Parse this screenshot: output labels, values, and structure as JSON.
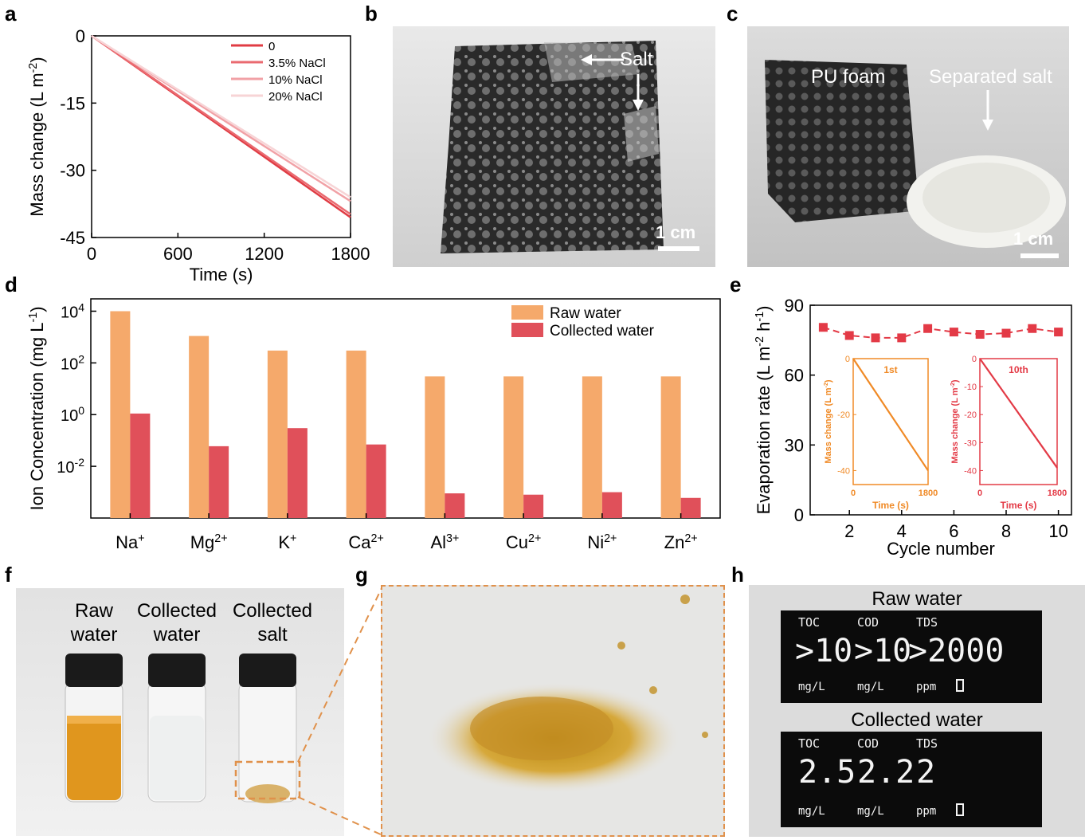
{
  "panel_labels": {
    "a": "a",
    "b": "b",
    "c": "c",
    "d": "d",
    "e": "e",
    "f": "f",
    "g": "g",
    "h": "h"
  },
  "chart_data": [
    {
      "panel": "a",
      "type": "line",
      "xlabel": "Time (s)",
      "ylabel": "Mass change (L m-2)",
      "xlim": [
        0,
        1800
      ],
      "ylim": [
        -45,
        0
      ],
      "xticks": [
        0,
        600,
        1200,
        1800
      ],
      "yticks": [
        0,
        -15,
        -30,
        -45
      ],
      "x": [
        0,
        1800
      ],
      "legend_position": "top-right",
      "series": [
        {
          "name": "0",
          "color": "#e03c44",
          "values": [
            0,
            -40.5
          ]
        },
        {
          "name": "3.5% NaCl",
          "color": "#ea6a70",
          "values": [
            0,
            -39.8
          ]
        },
        {
          "name": "10%  NaCl",
          "color": "#f1a1a6",
          "values": [
            0,
            -36.9
          ]
        },
        {
          "name": "20%  NaCl",
          "color": "#f7d4d6",
          "values": [
            0,
            -36.0
          ]
        }
      ]
    },
    {
      "panel": "d",
      "type": "bar",
      "scale": "log",
      "ylabel": "Ion Concentration (mg L-1)",
      "ylim": [
        0.0001,
        30000
      ],
      "yticks": [
        "10^-2",
        "10^0",
        "10^2",
        "10^4"
      ],
      "categories": [
        "Na+",
        "Mg2+",
        "K+",
        "Ca2+",
        "Al3+",
        "Cu2+",
        "Ni2+",
        "Zn2+"
      ],
      "legend_position": "top-right",
      "series": [
        {
          "name": "Raw water",
          "color": "#f5a96b",
          "values": [
            10000,
            1100,
            300,
            300,
            30,
            30,
            30,
            30
          ]
        },
        {
          "name": "Collected water",
          "color": "#e0505a",
          "values": [
            1.1,
            0.06,
            0.3,
            0.07,
            0.0009,
            0.0008,
            0.001,
            0.0006
          ]
        }
      ]
    },
    {
      "panel": "e",
      "type": "line",
      "xlabel": "Cycle number",
      "ylabel": "Evaporation rate (L m-2 h-1)",
      "xlim": [
        0.5,
        10.5
      ],
      "ylim": [
        0,
        90
      ],
      "xticks": [
        2,
        4,
        6,
        8,
        10
      ],
      "yticks": [
        0,
        30,
        60,
        90
      ],
      "x": [
        1,
        2,
        3,
        4,
        5,
        6,
        7,
        8,
        9,
        10
      ],
      "series": [
        {
          "color": "#e33a46",
          "values": [
            80.5,
            77,
            76,
            76,
            80,
            78.5,
            77.5,
            78,
            80,
            78.5
          ]
        }
      ]
    },
    {
      "panel": "e-inset-1",
      "type": "line",
      "title": "1st",
      "xlabel": "Time (s)",
      "ylabel": "Mass change (L m-2)",
      "xlim": [
        0,
        1800
      ],
      "ylim": [
        -45,
        0
      ],
      "xticks": [
        0,
        1800
      ],
      "yticks": [
        0,
        -20,
        -40
      ],
      "x": [
        0,
        1800
      ],
      "series": [
        {
          "color": "#f08a26",
          "values": [
            0,
            -40
          ]
        }
      ]
    },
    {
      "panel": "e-inset-10",
      "type": "line",
      "title": "10th",
      "xlabel": "Time (s)",
      "ylabel": "Mass change (L m-2)",
      "xlim": [
        0,
        1800
      ],
      "ylim": [
        -45,
        0
      ],
      "xticks": [
        0,
        1800
      ],
      "yticks": [
        0,
        -10,
        -20,
        -30,
        -40
      ],
      "x": [
        0,
        1800
      ],
      "series": [
        {
          "color": "#e33a46",
          "values": [
            0,
            -39
          ]
        }
      ]
    }
  ],
  "photos": {
    "b": {
      "salt_label": "Salt",
      "scale_bar": "1 cm"
    },
    "c": {
      "foam_label": "PU foam",
      "salt_label": "Separated salt",
      "scale_bar": "1 cm"
    },
    "f": {
      "vial1": "Raw\nwater",
      "vial2": "Collected\nwater",
      "vial3": "Collected\nsalt"
    },
    "h": {
      "raw_title": "Raw water",
      "collected_title": "Collected water",
      "headers": [
        "TOC",
        "COD",
        "TDS"
      ],
      "raw_values": [
        ">10",
        ">10",
        ">2000"
      ],
      "raw_units": [
        "mg/L",
        "mg/L",
        "ppm"
      ],
      "collected_values": [
        "2.5",
        "2.2",
        "2"
      ],
      "collected_units": [
        "mg/L",
        "mg/L",
        "ppm"
      ]
    }
  }
}
